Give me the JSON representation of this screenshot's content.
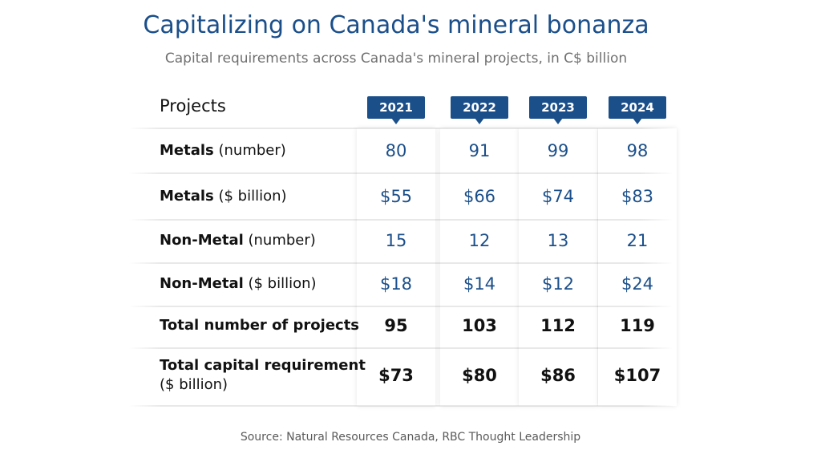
{
  "header": {
    "title": "Capitalizing on Canada's mineral bonanza",
    "subtitle": "Capital requirements across Canada's mineral projects, in C$ billion"
  },
  "source": "Source: Natural Resources Canada, RBC Thought Leadership",
  "chart_data": {
    "type": "table",
    "title": "Capitalizing on Canada's mineral bonanza",
    "subtitle": "Capital requirements across Canada's mineral projects, in C$ billion",
    "row_header": "Projects",
    "columns": [
      "2021",
      "2022",
      "2023",
      "2024"
    ],
    "rows": [
      {
        "label_bold": "Metals",
        "label_rest": " (number)",
        "values": [
          "80",
          "91",
          "99",
          "98"
        ],
        "style": "blue"
      },
      {
        "label_bold": "Metals",
        "label_rest": " ($ billion)",
        "values": [
          "$55",
          "$66",
          "$74",
          "$83"
        ],
        "style": "blue"
      },
      {
        "label_bold": "Non-Metal",
        "label_rest": " (number)",
        "values": [
          "15",
          "12",
          "13",
          "21"
        ],
        "style": "blue"
      },
      {
        "label_bold": "Non-Metal",
        "label_rest": " ($ billion)",
        "values": [
          "$18",
          "$14",
          "$12",
          "$24"
        ],
        "style": "blue"
      },
      {
        "label_bold": "Total number of projects",
        "label_rest": "",
        "values": [
          "95",
          "103",
          "112",
          "119"
        ],
        "style": "black"
      },
      {
        "label_bold": "Total capital requirement",
        "label_rest": "($ billion)",
        "values": [
          "$73",
          "$80",
          "$86",
          "$107"
        ],
        "style": "black"
      }
    ]
  },
  "colors": {
    "accent": "#1b4f8a",
    "total_text": "#111111"
  }
}
